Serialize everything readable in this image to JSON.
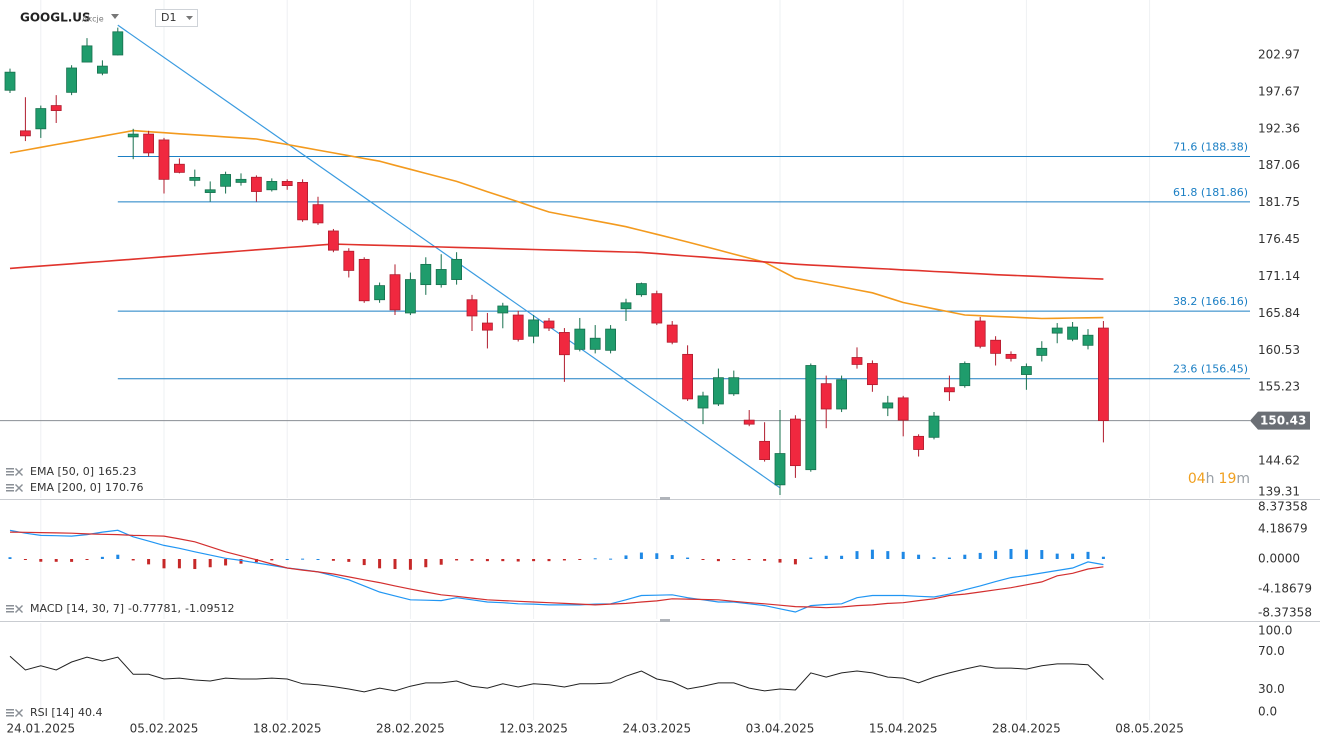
{
  "chart_data": [
    {
      "type": "candlestick",
      "title": "GOOGL.US",
      "subtitle": "Akcje",
      "timeframe": "D1",
      "categories": [
        null,
        null,
        "24.01.2025",
        null,
        null,
        null,
        null,
        null,
        null,
        null,
        "05.02.2025",
        null,
        null,
        null,
        null,
        null,
        null,
        null,
        "18.02.2025",
        null,
        null,
        null,
        null,
        null,
        null,
        null,
        "28.02.2025",
        null,
        null,
        null,
        null,
        null,
        null,
        null,
        "12.03.2025",
        null,
        null,
        null,
        null,
        null,
        null,
        null,
        "24.03.2025",
        null,
        null,
        null,
        null,
        null,
        null,
        null,
        "03.04.2025",
        null,
        null,
        null,
        null,
        null,
        null,
        null,
        "15.04.2025",
        null,
        null,
        null,
        null,
        null,
        null,
        null,
        "28.04.2025",
        null,
        null,
        null,
        null,
        null,
        null,
        null,
        "08.05.2025"
      ],
      "open": [
        197.9,
        192.07,
        192.36,
        195.7,
        197.6,
        201.95,
        200.35,
        202.97,
        191.2,
        191.6,
        190.76,
        187.27,
        184.95,
        183.2,
        184.1,
        184.66,
        185.4,
        183.6,
        184.8,
        184.66,
        181.46,
        177.68,
        174.77,
        173.6,
        167.8,
        171.4,
        165.9,
        169.97,
        169.97,
        170.7,
        167.8,
        164.45,
        165.9,
        165.6,
        162.56,
        164.74,
        163.1,
        160.67,
        160.67,
        160.53,
        166.5,
        168.52,
        168.67,
        164.16,
        159.95,
        152.24,
        152.82,
        154.28,
        150.5,
        147.45,
        141.2,
        150.65,
        143.38,
        155.74,
        152.1,
        159.5,
        158.64,
        152.24,
        153.7,
        148.17,
        148.03,
        155.16,
        155.45,
        164.74,
        161.98,
        159.95,
        157.05,
        159.8,
        163.0,
        162.12,
        161.25,
        163.73,
        null,
        null,
        null
      ],
      "high": [
        201.0,
        196.9,
        195.7,
        197.2,
        201.5,
        205.4,
        202.2,
        206.9,
        192.36,
        192.07,
        191.05,
        188.1,
        186.5,
        184.8,
        186.2,
        185.96,
        185.67,
        185.24,
        185.1,
        185.1,
        182.6,
        177.97,
        175.2,
        173.9,
        170.27,
        172.88,
        171.7,
        173.9,
        174.34,
        174.63,
        168.5,
        165.9,
        167.36,
        166.2,
        165.6,
        165.18,
        163.73,
        165.18,
        164.16,
        164.16,
        167.94,
        170.27,
        169.1,
        164.74,
        161.25,
        154.57,
        157.91,
        157.62,
        151.95,
        150.2,
        151.95,
        151.2,
        158.64,
        156.9,
        156.9,
        160.96,
        159.08,
        153.99,
        153.99,
        148.46,
        151.66,
        156.9,
        158.93,
        165.33,
        162.56,
        160.38,
        158.64,
        161.84,
        164.45,
        164.6,
        163.58,
        164.74,
        null,
        null,
        null
      ],
      "low": [
        197.5,
        190.6,
        191.05,
        193.2,
        197.2,
        201.95,
        200.06,
        202.9,
        188.0,
        188.4,
        183.06,
        185.96,
        184.1,
        181.9,
        183.06,
        184.2,
        181.9,
        183.35,
        183.6,
        179.0,
        178.55,
        174.63,
        171.0,
        167.36,
        167.36,
        165.6,
        165.6,
        168.5,
        169.54,
        169.97,
        163.3,
        160.8,
        163.7,
        161.8,
        161.55,
        163.3,
        156.0,
        160.38,
        160.09,
        160.09,
        164.74,
        168.23,
        164.16,
        161.4,
        153.26,
        149.92,
        152.53,
        153.99,
        149.63,
        144.54,
        139.74,
        142.2,
        143.09,
        149.34,
        151.66,
        157.9,
        154.57,
        151.08,
        148.17,
        145.27,
        147.74,
        153.26,
        155.16,
        160.82,
        158.35,
        158.93,
        154.86,
        158.93,
        161.55,
        161.84,
        160.67,
        147.3,
        null,
        null,
        null
      ],
      "close": [
        200.5,
        191.35,
        195.27,
        194.98,
        201.1,
        204.28,
        201.37,
        206.3,
        191.6,
        188.9,
        185.1,
        186.1,
        185.38,
        183.6,
        185.8,
        185.1,
        183.35,
        184.8,
        184.2,
        179.28,
        178.84,
        174.92,
        172.01,
        167.65,
        169.83,
        166.34,
        170.7,
        172.88,
        172.15,
        173.6,
        165.47,
        163.43,
        166.9,
        162.1,
        164.9,
        163.73,
        159.9,
        163.58,
        162.27,
        163.58,
        167.36,
        170.12,
        164.45,
        161.69,
        153.55,
        153.98,
        156.6,
        156.6,
        149.92,
        144.83,
        145.7,
        143.96,
        158.35,
        152.1,
        156.3,
        158.5,
        155.6,
        152.97,
        150.5,
        146.28,
        151.08,
        154.57,
        158.64,
        161.11,
        160.09,
        159.37,
        158.2,
        160.82,
        163.73,
        163.87,
        162.7,
        150.43,
        null,
        null,
        null
      ],
      "up_color": "#1f9c6c",
      "down_color": "#f0283f",
      "last_price_color": "#6b6f75",
      "ylim": [
        139.31,
        210.87
      ],
      "yticks": [
        202.97,
        197.67,
        192.36,
        187.06,
        181.75,
        176.45,
        171.14,
        165.84,
        160.53,
        155.23,
        144.62,
        139.31
      ],
      "grid": true,
      "overlays": [
        {
          "name": "EMA [50, 0]",
          "color": "#f39a1e",
          "values": [
            188.9,
            189.3,
            189.7,
            190.1,
            190.5,
            190.9,
            191.3,
            191.7,
            192.1,
            191.95,
            191.8,
            191.65,
            191.5,
            191.35,
            191.2,
            191.05,
            190.9,
            190.5,
            190.1,
            189.7,
            189.3,
            188.9,
            188.5,
            188.1,
            187.7,
            187.12,
            186.54,
            185.96,
            185.38,
            184.8,
            184.07,
            183.33,
            182.6,
            181.87,
            181.13,
            180.4,
            179.98,
            179.56,
            179.14,
            178.72,
            178.3,
            177.75,
            177.2,
            176.65,
            176.1,
            175.52,
            174.94,
            174.36,
            173.78,
            173.2,
            172.05,
            170.9,
            170.48,
            170.06,
            169.64,
            169.22,
            168.8,
            168.1,
            167.4,
            166.95,
            166.5,
            166.05,
            165.6,
            165.5,
            165.4,
            165.3,
            165.2,
            165.1,
            165.13,
            165.17,
            165.2,
            165.23,
            null,
            null,
            null
          ]
        },
        {
          "name": "EMA [200, 0]",
          "color": "#e0332c",
          "values": [
            172.3,
            172.47,
            172.63,
            172.8,
            172.97,
            173.13,
            173.3,
            173.47,
            173.63,
            173.8,
            173.97,
            174.13,
            174.3,
            174.47,
            174.63,
            174.8,
            174.97,
            175.13,
            175.3,
            175.47,
            175.63,
            175.8,
            175.74,
            175.68,
            175.62,
            175.56,
            175.5,
            175.44,
            175.38,
            175.32,
            175.26,
            175.2,
            175.14,
            175.08,
            175.02,
            174.96,
            174.9,
            174.84,
            174.78,
            174.72,
            174.66,
            174.6,
            174.43,
            174.26,
            174.09,
            173.92,
            173.75,
            173.58,
            173.41,
            173.24,
            173.07,
            172.9,
            172.78,
            172.67,
            172.55,
            172.44,
            172.32,
            172.21,
            172.09,
            171.98,
            171.86,
            171.75,
            171.63,
            171.52,
            171.4,
            171.31,
            171.22,
            171.13,
            171.03,
            170.94,
            170.85,
            170.76,
            null,
            null,
            null
          ]
        }
      ],
      "trendline": {
        "color": "#3a9be0",
        "start": {
          "index": 7,
          "value": 207.26
        },
        "end": {
          "index": 50,
          "value": 140.76
        }
      },
      "fib_color": "#1b7fc4",
      "fib_levels": [
        {
          "value": 188.38,
          "label": "71.6 (188.38)"
        },
        {
          "value": 181.86,
          "label": "61.8 (181.86)"
        },
        {
          "value": 166.16,
          "label": "38.2 (166.16)"
        },
        {
          "value": 156.45,
          "label": "23.6 (156.45)"
        }
      ],
      "countdown": {
        "hours": "04",
        "hours_unit": "h",
        "minutes": "19",
        "minutes_unit": "m",
        "color": "#f0a020"
      }
    },
    {
      "type": "macd",
      "name": "MACD [14, 30, 7]",
      "value_separator": ",",
      "ylim": [
        -8.37358,
        8.37358
      ],
      "yticks": [
        8.37358,
        4.18679,
        {
          "value": 0,
          "label": "0.0000"
        },
        -4.18679,
        -8.37358
      ],
      "histogram": {
        "up_color": "#1e88e5",
        "down_color": "#c62828",
        "values": [
          0.25,
          -0.12,
          -0.38,
          -0.39,
          -0.4,
          -0.1,
          0.3,
          0.6,
          -0.2,
          -0.75,
          -1.3,
          -1.3,
          -1.4,
          -1.15,
          -0.9,
          -0.65,
          -0.45,
          -0.2,
          0,
          0.05,
          0,
          -0.25,
          -0.4,
          -0.85,
          -1.3,
          -1.4,
          -1.5,
          -1.15,
          -0.8,
          -0.2,
          -0.25,
          -0.3,
          -0.3,
          -0.35,
          -0.3,
          -0.3,
          -0.2,
          -0.1,
          0.1,
          0.05,
          0.5,
          0.9,
          0.8,
          0.55,
          0.2,
          -0.05,
          -0.3,
          -0.1,
          -0.15,
          -0.25,
          -0.5,
          -0.75,
          0.2,
          0.45,
          0.45,
          1.1,
          1.3,
          1.1,
          1.0,
          0.6,
          0.25,
          0.2,
          0.6,
          0.85,
          1.15,
          1.4,
          1.3,
          1.25,
          0.75,
          0.75,
          1.0,
          0.31731,
          null,
          null,
          null
        ]
      },
      "macd": {
        "color": "#2196f3",
        "values": [
          4.0,
          3.6,
          3.3,
          3.25,
          3.2,
          3.4,
          3.75,
          4.0,
          3.1,
          2.5,
          1.9,
          1.5,
          1.0,
          0.55,
          0.1,
          -0.2,
          -0.55,
          -0.9,
          -1.25,
          -1.5,
          -1.8,
          -2.35,
          -2.9,
          -3.75,
          -4.6,
          -5.15,
          -5.7,
          -5.75,
          -5.8,
          -5.4,
          -5.7,
          -6.0,
          -6.1,
          -6.25,
          -6.3,
          -6.4,
          -6.4,
          -6.4,
          -6.3,
          -6.25,
          -5.7,
          -5.1,
          -5.05,
          -5.0,
          -5.4,
          -5.7,
          -6.0,
          -6.0,
          -6.25,
          -6.5,
          -6.95,
          -7.4,
          -6.5,
          -6.35,
          -6.25,
          -5.4,
          -5.1,
          -5.1,
          -5.1,
          -5.2,
          -5.3,
          -4.9,
          -4.3,
          -3.75,
          -3.15,
          -2.6,
          -2.3,
          -1.95,
          -1.6,
          -1.25,
          -0.4,
          -0.77781,
          null,
          null,
          null
        ]
      },
      "signal": {
        "color": "#d32f2f",
        "values": [
          3.75,
          3.72,
          3.68,
          3.64,
          3.6,
          3.5,
          3.45,
          3.4,
          3.3,
          3.25,
          3.2,
          2.8,
          2.4,
          1.7,
          1.0,
          0.45,
          -0.1,
          -0.7,
          -1.25,
          -1.55,
          -1.8,
          -2.1,
          -2.5,
          -2.9,
          -3.3,
          -3.75,
          -4.2,
          -4.6,
          -5.0,
          -5.2,
          -5.45,
          -5.7,
          -5.8,
          -5.9,
          -6.0,
          -6.1,
          -6.2,
          -6.3,
          -6.4,
          -6.3,
          -6.2,
          -6.0,
          -5.85,
          -5.55,
          -5.6,
          -5.65,
          -5.7,
          -5.9,
          -6.1,
          -6.25,
          -6.45,
          -6.65,
          -6.7,
          -6.8,
          -6.7,
          -6.5,
          -6.4,
          -6.2,
          -6.1,
          -5.8,
          -5.55,
          -5.1,
          -4.9,
          -4.6,
          -4.3,
          -4.0,
          -3.6,
          -3.2,
          -2.35,
          -2.0,
          -1.4,
          -1.09512,
          null,
          null,
          null
        ]
      }
    },
    {
      "type": "line",
      "name": "RSI [14]",
      "color": "#222222",
      "ylim": [
        0,
        100
      ],
      "yticks": [
        {
          "value": 100,
          "label": "100.0"
        },
        {
          "value": 70,
          "label": "70.0"
        },
        {
          "value": 30,
          "label": "30.0"
        },
        {
          "value": 0,
          "label": "0.0"
        }
      ],
      "values": [
        65,
        50.5,
        55,
        50.5,
        59,
        64,
        60,
        64,
        46,
        46,
        41,
        42,
        40,
        39,
        42,
        41,
        41,
        42,
        41,
        36,
        35,
        33,
        30.5,
        27.5,
        31.5,
        28.5,
        33.5,
        37,
        37,
        39,
        33.5,
        31.5,
        36,
        32.6,
        36,
        35,
        32.6,
        36,
        36,
        37,
        44,
        49.5,
        41,
        38,
        30.5,
        33.5,
        37,
        37,
        31.5,
        28.5,
        30.5,
        29.5,
        47.5,
        43,
        47.5,
        49.5,
        47.5,
        43,
        42,
        37,
        43,
        47.5,
        51.5,
        55,
        52.5,
        52.5,
        51.5,
        55,
        57,
        57,
        56,
        40.4,
        null,
        null,
        null
      ]
    }
  ]
}
